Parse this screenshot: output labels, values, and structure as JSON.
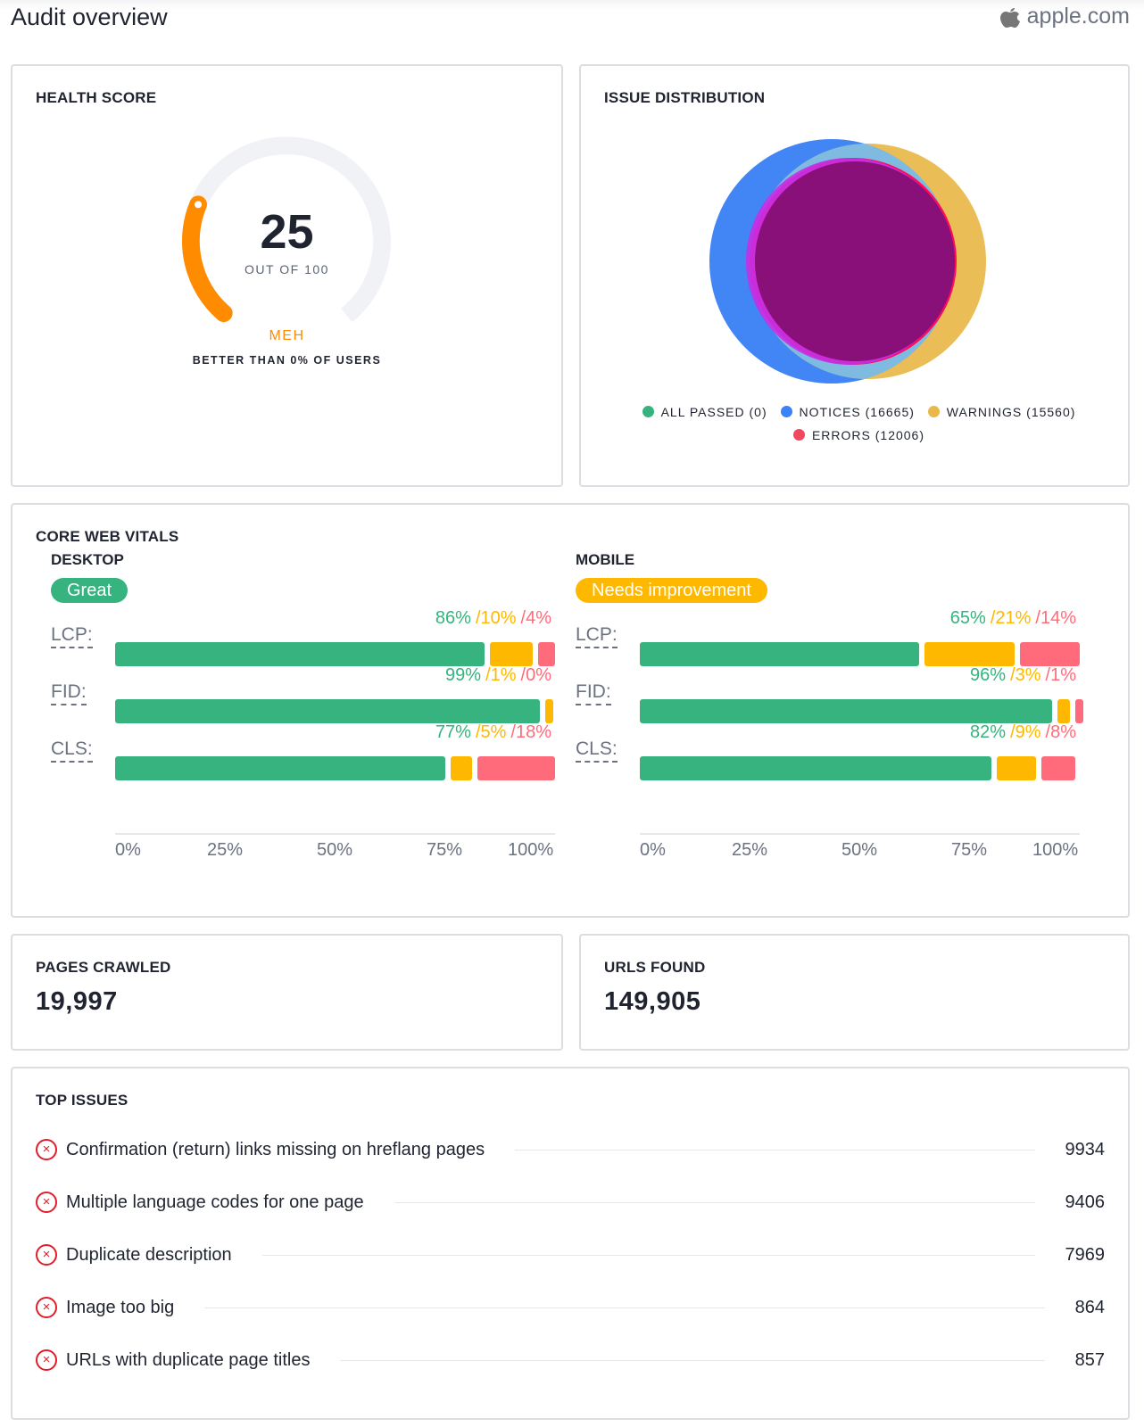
{
  "header": {
    "title": "Audit overview",
    "site": "apple.com",
    "site_icon": "apple-logo-icon"
  },
  "health": {
    "title": "HEALTH SCORE",
    "score": "25",
    "score_value": 25,
    "max": 100,
    "out_of": "OUT OF 100",
    "rating": "MEH",
    "better_than": "BETTER THAN 0% OF USERS",
    "color": "#ff8c00"
  },
  "distribution": {
    "title": "ISSUE DISTRIBUTION",
    "legend": [
      {
        "label": "ALL PASSED (0)",
        "color": "#36b37e"
      },
      {
        "label": "NOTICES (16665)",
        "color": "#3b82f6"
      },
      {
        "label": "WARNINGS (15560)",
        "color": "#e8b84a"
      },
      {
        "label": "ERRORS (12006)",
        "color": "#f0485e"
      }
    ]
  },
  "cwv": {
    "title": "CORE WEB VITALS",
    "ticks": [
      "0%",
      "25%",
      "50%",
      "75%",
      "100%"
    ],
    "colors": {
      "good": "#36b37e",
      "needs": "#ffb800",
      "poor": "#ff6b7a"
    },
    "desktop": {
      "label": "DESKTOP",
      "badge": "Great",
      "badge_color": "#36b37e",
      "metrics": [
        {
          "name": "LCP:",
          "good": "86%",
          "needs": "/10%",
          "poor": "/4%",
          "values": [
            86,
            10,
            4
          ]
        },
        {
          "name": "FID:",
          "good": "99%",
          "needs": "/1%",
          "poor": "/0%",
          "values": [
            99,
            1,
            0
          ]
        },
        {
          "name": "CLS:",
          "good": "77%",
          "needs": "/5%",
          "poor": "/18%",
          "values": [
            77,
            5,
            18
          ]
        }
      ]
    },
    "mobile": {
      "label": "MOBILE",
      "badge": "Needs improvement",
      "badge_color": "#ffb800",
      "metrics": [
        {
          "name": "LCP:",
          "good": "65%",
          "needs": "/21%",
          "poor": "/14%",
          "values": [
            65,
            21,
            14
          ]
        },
        {
          "name": "FID:",
          "good": "96%",
          "needs": "/3%",
          "poor": "/1%",
          "values": [
            96,
            3,
            1
          ]
        },
        {
          "name": "CLS:",
          "good": "82%",
          "needs": "/9%",
          "poor": "/8%",
          "values": [
            82,
            9,
            8
          ]
        }
      ]
    }
  },
  "pages_crawled": {
    "title": "PAGES CRAWLED",
    "value": "19,997"
  },
  "urls_found": {
    "title": "URLS FOUND",
    "value": "149,905"
  },
  "top_issues": {
    "title": "TOP ISSUES",
    "items": [
      {
        "label": "Confirmation (return) links missing on hreflang pages",
        "count": "9934"
      },
      {
        "label": "Multiple language codes for one page",
        "count": "9406"
      },
      {
        "label": "Duplicate description",
        "count": "7969"
      },
      {
        "label": "Image too big",
        "count": "864"
      },
      {
        "label": "URLs with duplicate page titles",
        "count": "857"
      }
    ]
  }
}
